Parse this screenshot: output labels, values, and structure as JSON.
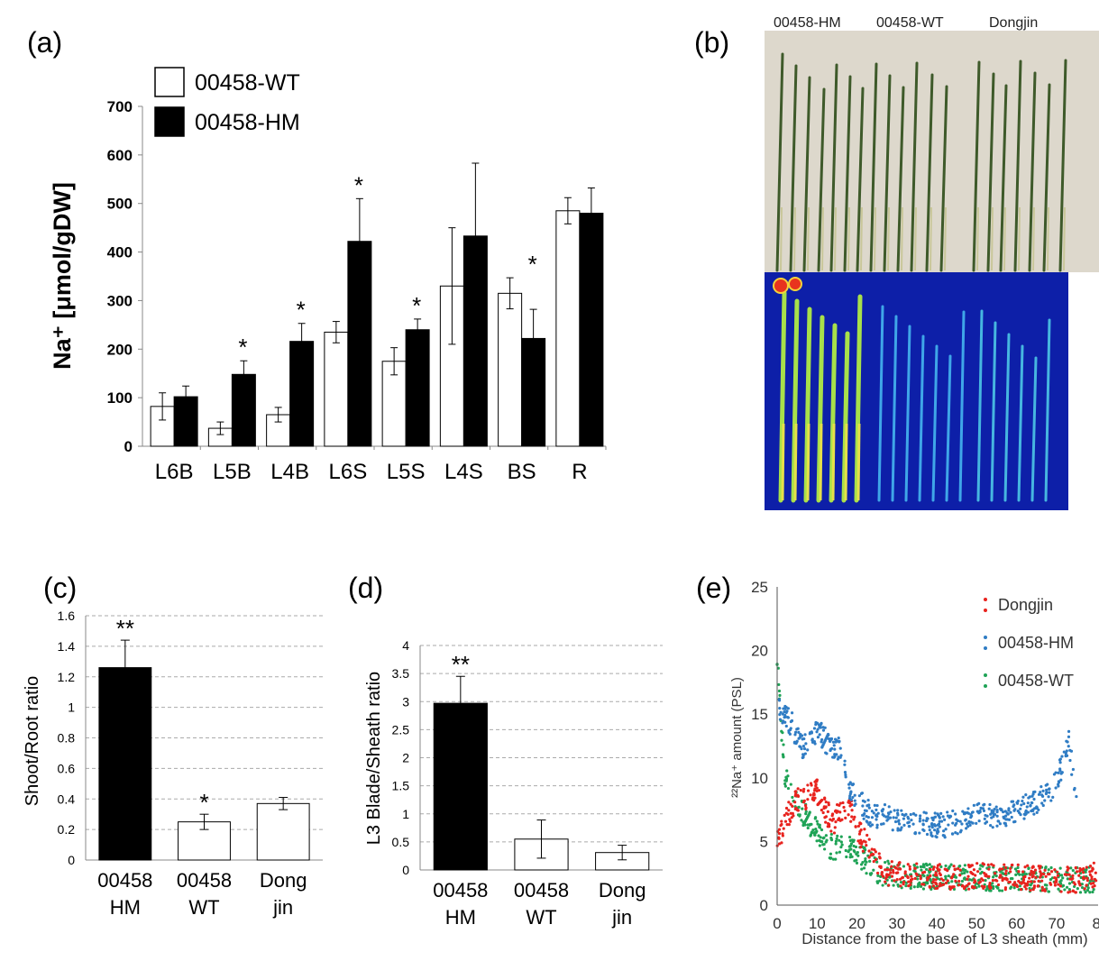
{
  "panel_labels": {
    "a": "(a)",
    "b": "(b)",
    "c": "(c)",
    "d": "(d)",
    "e": "(e)"
  },
  "colors": {
    "black_bar": "#000000",
    "white_bar": "#ffffff",
    "phosphor_bg": "#0d1fa8",
    "dongjin": "#e8231e",
    "hm": "#2f7cc4",
    "wt": "#1fa356"
  },
  "chart_data": [
    {
      "id": "a",
      "type": "bar",
      "ylabel": "Na⁺ [μmol/gDW]",
      "ylim": [
        0,
        700
      ],
      "yticks": [
        0,
        100,
        200,
        300,
        400,
        500,
        600,
        700
      ],
      "categories": [
        "L6B",
        "L5B",
        "L4B",
        "L6S",
        "L5S",
        "L4S",
        "BS",
        "R"
      ],
      "series": [
        {
          "name": "00458-WT",
          "color": "#ffffff",
          "values": [
            82,
            37,
            65,
            235,
            175,
            330,
            315,
            485
          ],
          "errors": [
            28,
            13,
            15,
            22,
            28,
            120,
            32,
            27
          ]
        },
        {
          "name": "00458-HM",
          "color": "#000000",
          "values": [
            102,
            148,
            216,
            422,
            240,
            433,
            222,
            480
          ],
          "errors": [
            22,
            28,
            37,
            88,
            22,
            150,
            60,
            52
          ]
        }
      ],
      "significance": [
        "",
        "*",
        "*",
        "*",
        "*",
        "",
        "*",
        ""
      ],
      "legend": "top-left"
    },
    {
      "id": "b",
      "type": "image",
      "labels": [
        "00458-HM",
        "00458-WT",
        "Dongjin"
      ]
    },
    {
      "id": "c",
      "type": "bar",
      "ylabel": "Shoot/Root ratio",
      "ylim": [
        0,
        1.6
      ],
      "yticks": [
        "0",
        "0.2",
        "0.4",
        "0.6",
        "0.8",
        "1",
        "1.2",
        "1.4",
        "1.6"
      ],
      "categories": [
        "00458 HM",
        "00458 WT",
        "Dong jin"
      ],
      "values": [
        1.26,
        0.25,
        0.37
      ],
      "errors": [
        0.18,
        0.05,
        0.04
      ],
      "colors": [
        "#000000",
        "#ffffff",
        "#ffffff"
      ],
      "significance": [
        "**",
        "*",
        ""
      ],
      "grid": "dashed-horizontal"
    },
    {
      "id": "d",
      "type": "bar",
      "ylabel": "L3 Blade/Sheath ratio",
      "ylim": [
        0,
        4
      ],
      "yticks": [
        "0",
        "0.5",
        "1",
        "1.5",
        "2",
        "2.5",
        "3",
        "3.5",
        "4"
      ],
      "categories": [
        "00458 HM",
        "00458 WT",
        "Dong jin"
      ],
      "values": [
        2.97,
        0.55,
        0.31
      ],
      "errors": [
        0.48,
        0.34,
        0.13
      ],
      "colors": [
        "#000000",
        "#ffffff",
        "#ffffff"
      ],
      "significance": [
        "**",
        "",
        ""
      ],
      "grid": "dashed-horizontal"
    },
    {
      "id": "e",
      "type": "scatter",
      "xlabel": "Distance from the base of L3 sheath (mm)",
      "ylabel": "²²Na⁺ amount (PSL)",
      "xlim": [
        0,
        80
      ],
      "ylim": [
        0,
        25
      ],
      "xticks": [
        "0",
        "10",
        "20",
        "30",
        "40",
        "50",
        "60",
        "70",
        "8"
      ],
      "yticks": [
        "0",
        "5",
        "10",
        "15",
        "20",
        "25"
      ],
      "legend": "top-right",
      "series": [
        {
          "name": "Dongjin",
          "color": "#e8231e",
          "x": [
            0,
            2,
            4,
            6,
            8,
            10,
            12,
            14,
            16,
            18,
            20,
            22,
            24,
            26,
            28,
            30,
            35,
            40,
            45,
            50,
            55,
            60,
            65,
            70,
            75,
            80
          ],
          "y": [
            5,
            6.5,
            8,
            8.5,
            8.5,
            9,
            7.5,
            6.5,
            7.5,
            8,
            6,
            5,
            4,
            3,
            2.5,
            2.5,
            2.3,
            2.2,
            2.2,
            2.3,
            2.2,
            2.2,
            2.1,
            2.0,
            2.0,
            2.5
          ]
        },
        {
          "name": "00458-HM",
          "color": "#2f7cc4",
          "x": [
            0,
            2,
            4,
            6,
            8,
            10,
            12,
            14,
            16,
            18,
            20,
            22,
            24,
            26,
            28,
            30,
            35,
            40,
            45,
            50,
            55,
            60,
            65,
            70,
            73,
            75
          ],
          "y": [
            15.5,
            15,
            14,
            12.5,
            12.5,
            14,
            13,
            12,
            12.5,
            9,
            8.5,
            7.5,
            7,
            7,
            7,
            6.5,
            6.5,
            6.2,
            6.5,
            7,
            7,
            7.5,
            8,
            9.5,
            13,
            8
          ]
        },
        {
          "name": "00458-WT",
          "color": "#1fa356",
          "x": [
            0,
            2,
            4,
            6,
            8,
            10,
            12,
            14,
            16,
            18,
            20,
            22,
            24,
            26,
            28,
            30,
            35,
            40,
            45,
            50,
            55,
            60,
            65,
            70,
            75,
            80
          ],
          "y": [
            19,
            10,
            8.5,
            7.5,
            6.5,
            6,
            5,
            4.5,
            4.5,
            4.5,
            4,
            3.5,
            3,
            2.5,
            2.5,
            2.3,
            2.3,
            2.2,
            2.2,
            2.2,
            2.1,
            2.1,
            2.0,
            2.0,
            2.0,
            2.0
          ]
        }
      ]
    }
  ]
}
